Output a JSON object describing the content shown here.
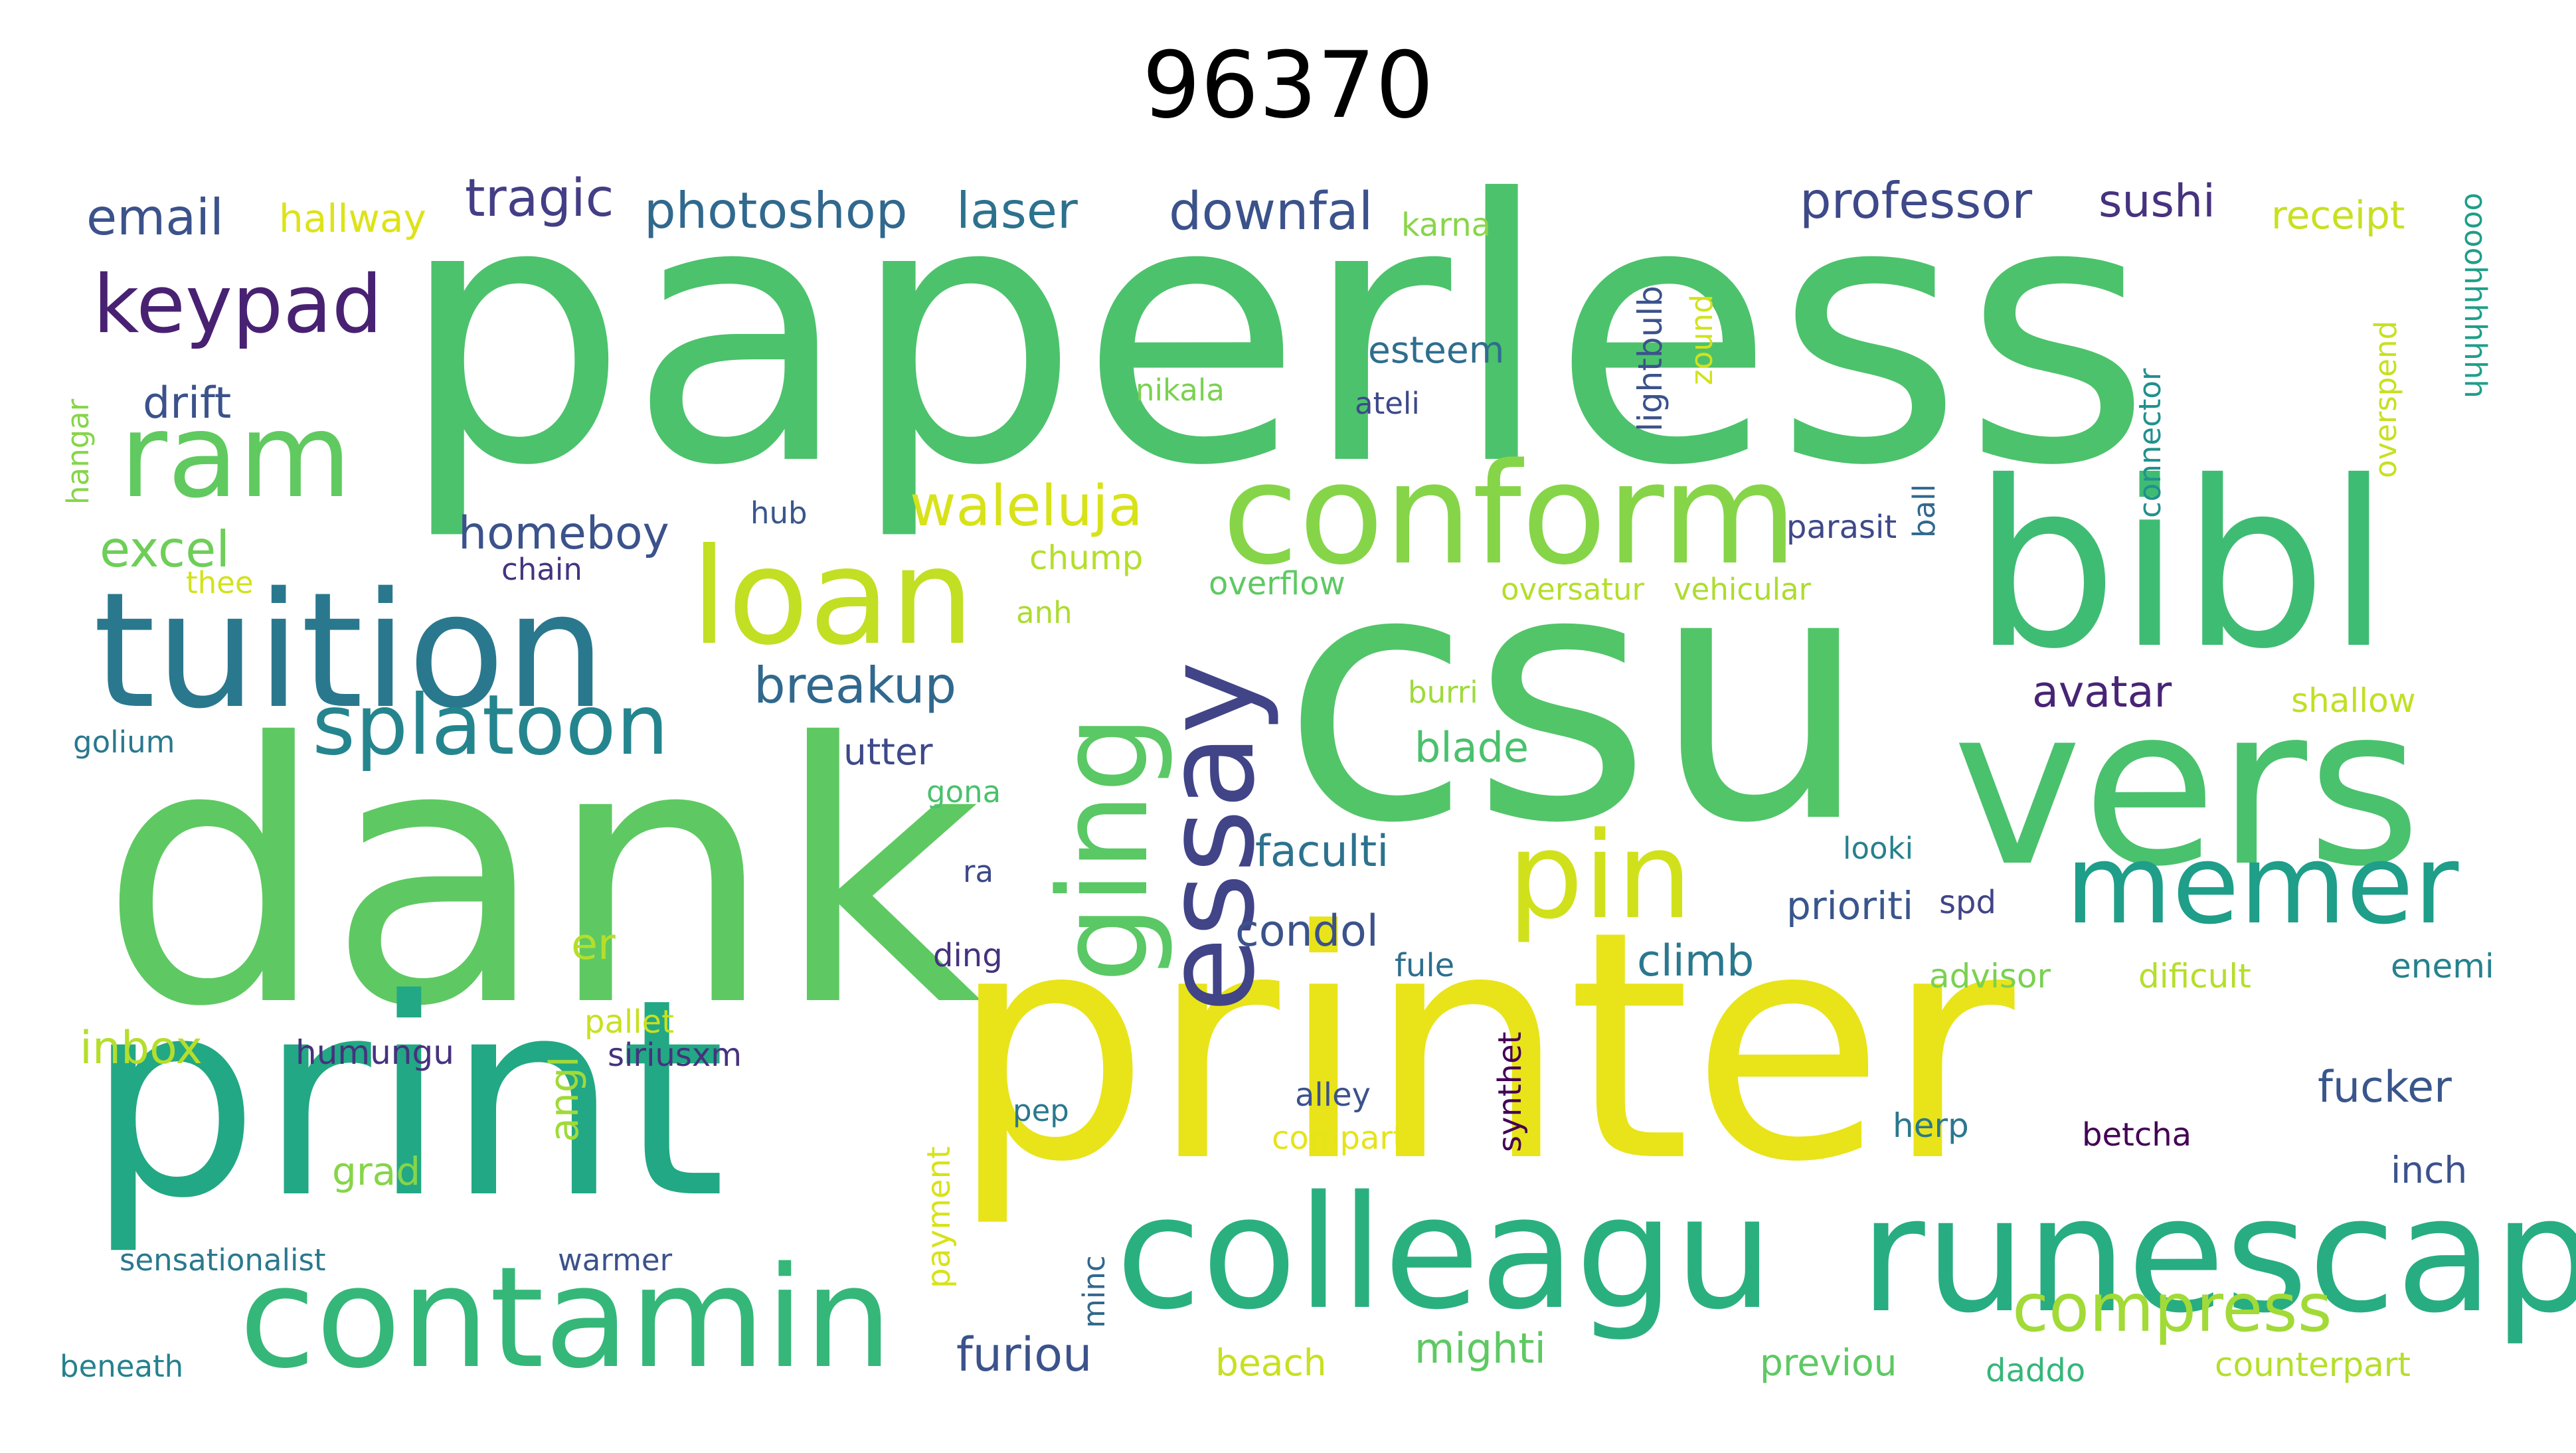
{
  "title": "96370",
  "words": [
    {
      "text": "paperless",
      "color": "#4cc26c"
    },
    {
      "text": "dank",
      "color": "#5ec962"
    },
    {
      "text": "csu",
      "color": "#52c569"
    },
    {
      "text": "printer",
      "color": "#e8e419"
    },
    {
      "text": "print",
      "color": "#22a884"
    },
    {
      "text": "bibl",
      "color": "#3fbc73"
    },
    {
      "text": "vers",
      "color": "#4ac16d"
    },
    {
      "text": "tuition",
      "color": "#2a788e"
    },
    {
      "text": "colleagu",
      "color": "#2ab07f"
    },
    {
      "text": "runescap",
      "color": "#27ad81"
    },
    {
      "text": "contamin",
      "color": "#35b779"
    },
    {
      "text": "conform",
      "color": "#86d549"
    },
    {
      "text": "loan",
      "color": "#c2df23"
    },
    {
      "text": "ram",
      "color": "#60ca60"
    },
    {
      "text": "essay",
      "color": "#414487"
    },
    {
      "text": "ging",
      "color": "#5ac864"
    },
    {
      "text": "pin",
      "color": "#d0e11c"
    },
    {
      "text": "memer",
      "color": "#1f9e89"
    },
    {
      "text": "splatoon",
      "color": "#25858e"
    },
    {
      "text": "keypad",
      "color": "#482173"
    },
    {
      "text": "compress",
      "color": "#a2da37"
    },
    {
      "text": "email",
      "color": "#3b528b"
    },
    {
      "text": "tragic",
      "color": "#433e85"
    },
    {
      "text": "photoshop",
      "color": "#31688e"
    },
    {
      "text": "laser",
      "color": "#2c728e"
    },
    {
      "text": "downfal",
      "color": "#3b528b"
    },
    {
      "text": "professor",
      "color": "#3e4989"
    },
    {
      "text": "sushi",
      "color": "#46327e"
    },
    {
      "text": "receipt",
      "color": "#c8e020"
    },
    {
      "text": "hallway",
      "color": "#dde318"
    },
    {
      "text": "karna",
      "color": "#89d548"
    },
    {
      "text": "esteem",
      "color": "#2e6e8e"
    },
    {
      "text": "drift",
      "color": "#3b528b"
    },
    {
      "text": "nikala",
      "color": "#7ad151"
    },
    {
      "text": "ateli",
      "color": "#3e4989"
    },
    {
      "text": "waleluja",
      "color": "#d8e219"
    },
    {
      "text": "homeboy",
      "color": "#3b528b"
    },
    {
      "text": "excel",
      "color": "#6ece58"
    },
    {
      "text": "hub",
      "color": "#39568c"
    },
    {
      "text": "chain",
      "color": "#46337f"
    },
    {
      "text": "chump",
      "color": "#b5de2b"
    },
    {
      "text": "parasit",
      "color": "#3e4989"
    },
    {
      "text": "overflow",
      "color": "#5ec962"
    },
    {
      "text": "oversatur",
      "color": "#b5de2b"
    },
    {
      "text": "vehicular",
      "color": "#addc30"
    },
    {
      "text": "thee",
      "color": "#d2e21b"
    },
    {
      "text": "breakup",
      "color": "#31688e"
    },
    {
      "text": "avatar",
      "color": "#482475"
    },
    {
      "text": "shallow",
      "color": "#c2df23"
    },
    {
      "text": "golium",
      "color": "#2a788e"
    },
    {
      "text": "utter",
      "color": "#3e4989"
    },
    {
      "text": "blade",
      "color": "#4ac16d"
    },
    {
      "text": "burri",
      "color": "#9fda3a"
    },
    {
      "text": "anh",
      "color": "#addc30"
    },
    {
      "text": "gona",
      "color": "#4ac16d"
    },
    {
      "text": "faculti",
      "color": "#2c728e"
    },
    {
      "text": "looki",
      "color": "#26818e"
    },
    {
      "text": "er",
      "color": "#b5de2b"
    },
    {
      "text": "condol",
      "color": "#3b528b"
    },
    {
      "text": "prioriti",
      "color": "#39568c"
    },
    {
      "text": "spd",
      "color": "#414487"
    },
    {
      "text": "ra",
      "color": "#3e4989"
    },
    {
      "text": "ding",
      "color": "#46327e"
    },
    {
      "text": "climb",
      "color": "#2a788e"
    },
    {
      "text": "fule",
      "color": "#2e6e8e"
    },
    {
      "text": "advisor",
      "color": "#7ad151"
    },
    {
      "text": "dificult",
      "color": "#b5de2b"
    },
    {
      "text": "enemi",
      "color": "#26818e"
    },
    {
      "text": "inbox",
      "color": "#b5de2b"
    },
    {
      "text": "humungu",
      "color": "#46327e"
    },
    {
      "text": "pallet",
      "color": "#c8e020"
    },
    {
      "text": "siriusxm",
      "color": "#46327e"
    },
    {
      "text": "angl",
      "color": "#a0da39"
    },
    {
      "text": "pep",
      "color": "#2a788e"
    },
    {
      "text": "alley",
      "color": "#3b528b"
    },
    {
      "text": "compart",
      "color": "#e5e419"
    },
    {
      "text": "synthet",
      "color": "#440154"
    },
    {
      "text": "fucker",
      "color": "#39568c"
    },
    {
      "text": "herp",
      "color": "#2a788e"
    },
    {
      "text": "betcha",
      "color": "#440154"
    },
    {
      "text": "inch",
      "color": "#3b528b"
    },
    {
      "text": "grad",
      "color": "#86d549"
    },
    {
      "text": "payment",
      "color": "#d8e219"
    },
    {
      "text": "sensationalist",
      "color": "#2a788e"
    },
    {
      "text": "warmer",
      "color": "#3b528b"
    },
    {
      "text": "minc",
      "color": "#31688e"
    },
    {
      "text": "beneath",
      "color": "#26818e"
    },
    {
      "text": "furiou",
      "color": "#3b528b"
    },
    {
      "text": "beach",
      "color": "#c8e020"
    },
    {
      "text": "mighti",
      "color": "#5ec962"
    },
    {
      "text": "previou",
      "color": "#5ec962"
    },
    {
      "text": "daddo",
      "color": "#35b779"
    },
    {
      "text": "counterpart",
      "color": "#b5de2b"
    },
    {
      "text": "lightbulb",
      "color": "#3b528b"
    },
    {
      "text": "zound",
      "color": "#d2e21b"
    },
    {
      "text": "ball",
      "color": "#31688e"
    },
    {
      "text": "connector",
      "color": "#21918c"
    },
    {
      "text": "overspend",
      "color": "#c8e020"
    },
    {
      "text": "oooohhhhhhh",
      "color": "#1f9e89"
    },
    {
      "text": "hangar",
      "color": "#86d549"
    }
  ]
}
